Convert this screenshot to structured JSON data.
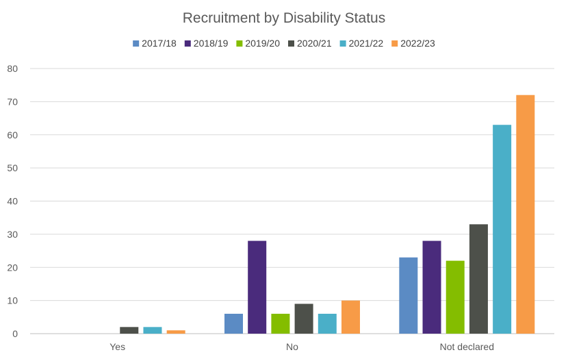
{
  "chart_data": {
    "type": "bar",
    "title": "Recruitment by Disability Status",
    "xlabel": "",
    "ylabel": "",
    "categories": [
      "Yes",
      "No",
      "Not declared"
    ],
    "series": [
      {
        "name": "2017/18",
        "color": "#5b8bc4",
        "values": [
          0,
          6,
          23
        ]
      },
      {
        "name": "2018/19",
        "color": "#4a2b7c",
        "values": [
          0,
          28,
          28
        ]
      },
      {
        "name": "2019/20",
        "color": "#84bd00",
        "values": [
          0,
          6,
          22
        ]
      },
      {
        "name": "2020/21",
        "color": "#4d504a",
        "values": [
          2,
          9,
          33
        ]
      },
      {
        "name": "2021/22",
        "color": "#4aafc8",
        "values": [
          2,
          6,
          63
        ]
      },
      {
        "name": "2022/23",
        "color": "#f79b47",
        "values": [
          1,
          10,
          72
        ]
      }
    ],
    "ylim": [
      0,
      80
    ],
    "yticks": [
      0,
      10,
      20,
      30,
      40,
      50,
      60,
      70,
      80
    ],
    "grid": true,
    "legend_position": "top"
  }
}
